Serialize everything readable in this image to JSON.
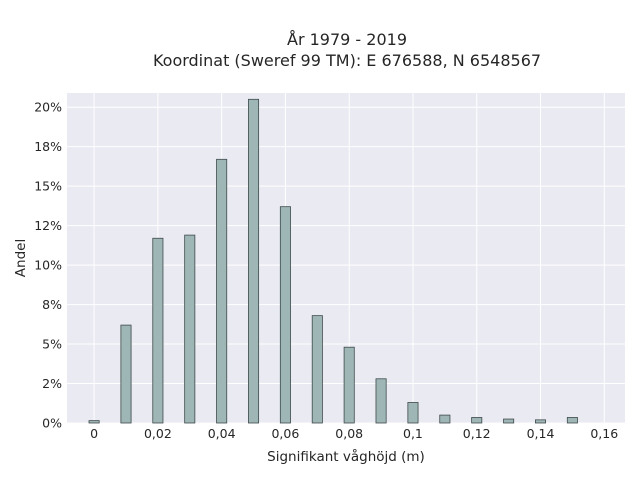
{
  "chart_data": {
    "type": "bar",
    "title_lines": [
      "År 1979 - 2019",
      "Koordinat (Sweref 99 TM): E 676588, N 6548567"
    ],
    "xlabel": "Signifikant våghöjd (m)",
    "ylabel": "Andel",
    "x": [
      0,
      0.01,
      0.02,
      0.03,
      0.04,
      0.05,
      0.06,
      0.07,
      0.08,
      0.09,
      0.1,
      0.11,
      0.12,
      0.13,
      0.14,
      0.15
    ],
    "values": [
      0.15,
      6.2,
      11.7,
      11.9,
      16.7,
      20.5,
      13.7,
      6.8,
      4.8,
      2.8,
      1.3,
      0.5,
      0.35,
      0.25,
      0.2,
      0.35
    ],
    "xlim": [
      -0.0085,
      0.1665
    ],
    "ylim": [
      0,
      20.9
    ],
    "x_ticks": [
      0,
      0.02,
      0.04,
      0.06,
      0.08,
      0.1,
      0.12,
      0.14,
      0.16
    ],
    "x_tick_labels": [
      "0",
      "0,02",
      "0,04",
      "0,06",
      "0,08",
      "0,1",
      "0,12",
      "0,14",
      "0,16"
    ],
    "y_ticks": [
      0,
      2.5,
      5,
      7.5,
      10,
      12.5,
      15,
      17.5,
      20
    ],
    "y_tick_labels": [
      "0%",
      "2%",
      "5%",
      "8%",
      "10%",
      "12%",
      "15%",
      "18%",
      "20%"
    ],
    "y_unit": "percent",
    "grid": true,
    "colors": {
      "bar_fill": "#9fb6b7",
      "bar_edge": "#3e4a4b",
      "plot_background": "#eaeaf2",
      "grid": "#ffffff"
    }
  }
}
